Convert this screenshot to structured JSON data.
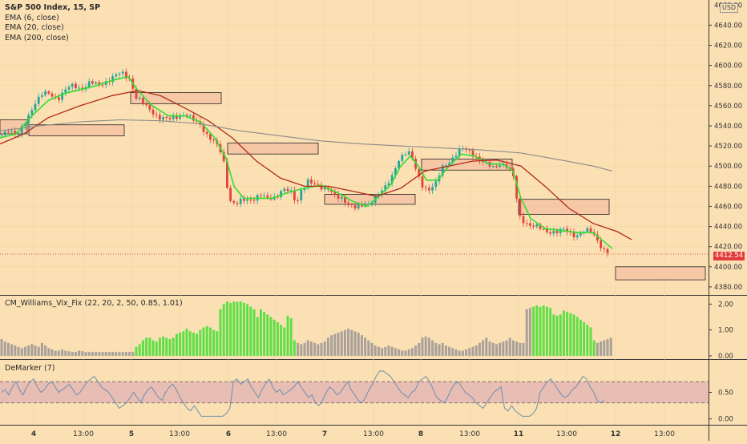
{
  "legend": {
    "symbol": "S&P 500 Index, 15, SP",
    "ema1": "EMA (6, close)",
    "ema2": "EMA (20, close)",
    "ema3": "EMA (200, close)"
  },
  "currency": "USD",
  "last_price": "4412.54",
  "indicators": {
    "wvf_title": "CM_Williams_Vix_Fix (22, 20, 2, 50, 0.85, 1.01)",
    "demarker_title": "DeMarker (7)"
  },
  "colors": {
    "background": "#fbe0b4",
    "ema_fast": "#33dd33",
    "ema_mid": "#b02a18",
    "ema_slow": "#8a8a8a",
    "candle_up": "#26a69a",
    "candle_down": "#e0443a",
    "zone_fill": "#f5c3a3",
    "wvf_high": "#5de045",
    "wvf_normal": "#a8a09a",
    "demarker_band": "#e6b9b2",
    "demarker_line": "#6c8fb0"
  },
  "chart_data": {
    "type": "candlestick",
    "x_tick_labels": [
      "4",
      "13:00",
      "5",
      "13:00",
      "6",
      "13:00",
      "7",
      "13:00",
      "8",
      "13:00",
      "11",
      "13:00",
      "12",
      "13:00"
    ],
    "price_axis": {
      "ylim": [
        4372,
        4665
      ],
      "ticks": [
        "4640.00",
        "4620.00",
        "4600.00",
        "4580.00",
        "4560.00",
        "4540.00",
        "4520.00",
        "4500.00",
        "4480.00",
        "4460.00",
        "4440.00",
        "4420.00",
        "4400.00",
        "4380.00"
      ],
      "top_tick_partial": "4660.00"
    },
    "last_price": 4412.54,
    "price_path": [
      [
        0,
        4530
      ],
      [
        10,
        4538
      ],
      [
        22,
        4528
      ],
      [
        32,
        4545
      ],
      [
        42,
        4562
      ],
      [
        52,
        4570
      ],
      [
        62,
        4572
      ],
      [
        72,
        4568
      ],
      [
        82,
        4575
      ],
      [
        92,
        4580
      ],
      [
        102,
        4578
      ],
      [
        112,
        4582
      ],
      [
        122,
        4580
      ],
      [
        132,
        4585
      ],
      [
        142,
        4588
      ],
      [
        152,
        4592
      ],
      [
        162,
        4588
      ],
      [
        170,
        4568
      ],
      [
        180,
        4560
      ],
      [
        190,
        4555
      ],
      [
        200,
        4548
      ],
      [
        210,
        4545
      ],
      [
        220,
        4550
      ],
      [
        230,
        4552
      ],
      [
        240,
        4545
      ],
      [
        250,
        4542
      ],
      [
        260,
        4530
      ],
      [
        270,
        4520
      ],
      [
        278,
        4510
      ],
      [
        286,
        4468
      ],
      [
        294,
        4462
      ],
      [
        304,
        4465
      ],
      [
        314,
        4468
      ],
      [
        324,
        4472
      ],
      [
        334,
        4466
      ],
      [
        344,
        4470
      ],
      [
        352,
        4478
      ],
      [
        362,
        4474
      ],
      [
        370,
        4462
      ],
      [
        376,
        4478
      ],
      [
        384,
        4486
      ],
      [
        392,
        4480
      ],
      [
        400,
        4478
      ],
      [
        410,
        4480
      ],
      [
        420,
        4468
      ],
      [
        430,
        4464
      ],
      [
        440,
        4462
      ],
      [
        450,
        4459
      ],
      [
        460,
        4460
      ],
      [
        470,
        4474
      ],
      [
        480,
        4478
      ],
      [
        488,
        4485
      ],
      [
        496,
        4505
      ],
      [
        504,
        4515
      ],
      [
        512,
        4512
      ],
      [
        520,
        4492
      ],
      [
        528,
        4480
      ],
      [
        536,
        4478
      ],
      [
        544,
        4482
      ],
      [
        552,
        4498
      ],
      [
        560,
        4505
      ],
      [
        568,
        4512
      ],
      [
        576,
        4516
      ],
      [
        584,
        4515
      ],
      [
        592,
        4512
      ],
      [
        600,
        4506
      ],
      [
        608,
        4500
      ],
      [
        616,
        4498
      ],
      [
        624,
        4504
      ],
      [
        632,
        4500
      ],
      [
        640,
        4490
      ],
      [
        648,
        4450
      ],
      [
        656,
        4445
      ],
      [
        664,
        4440
      ],
      [
        672,
        4438
      ],
      [
        680,
        4436
      ],
      [
        688,
        4436
      ],
      [
        696,
        4434
      ],
      [
        704,
        4436
      ],
      [
        712,
        4434
      ],
      [
        720,
        4432
      ],
      [
        728,
        4434
      ],
      [
        736,
        4435
      ],
      [
        744,
        4430
      ],
      [
        752,
        4418
      ],
      [
        760,
        4412.5
      ]
    ],
    "series": [
      {
        "name": "EMA (6, close)",
        "values": [
          [
            0,
            4528
          ],
          [
            20,
            4532
          ],
          [
            40,
            4550
          ],
          [
            60,
            4565
          ],
          [
            80,
            4572
          ],
          [
            100,
            4576
          ],
          [
            120,
            4580
          ],
          [
            140,
            4585
          ],
          [
            160,
            4589
          ],
          [
            172,
            4575
          ],
          [
            190,
            4560
          ],
          [
            210,
            4550
          ],
          [
            230,
            4550
          ],
          [
            250,
            4544
          ],
          [
            268,
            4528
          ],
          [
            282,
            4508
          ],
          [
            292,
            4480
          ],
          [
            304,
            4468
          ],
          [
            320,
            4468
          ],
          [
            340,
            4468
          ],
          [
            360,
            4474
          ],
          [
            380,
            4478
          ],
          [
            400,
            4481
          ],
          [
            420,
            4474
          ],
          [
            440,
            4465
          ],
          [
            458,
            4460
          ],
          [
            470,
            4468
          ],
          [
            488,
            4482
          ],
          [
            500,
            4500
          ],
          [
            512,
            4510
          ],
          [
            522,
            4500
          ],
          [
            532,
            4486
          ],
          [
            546,
            4486
          ],
          [
            560,
            4500
          ],
          [
            576,
            4512
          ],
          [
            592,
            4510
          ],
          [
            610,
            4502
          ],
          [
            628,
            4502
          ],
          [
            640,
            4495
          ],
          [
            650,
            4468
          ],
          [
            662,
            4448
          ],
          [
            680,
            4438
          ],
          [
            700,
            4436
          ],
          [
            720,
            4434
          ],
          [
            740,
            4434
          ],
          [
            752,
            4426
          ],
          [
            764,
            4418
          ]
        ]
      },
      {
        "name": "EMA (20, close)",
        "values": [
          [
            0,
            4522
          ],
          [
            30,
            4532
          ],
          [
            60,
            4548
          ],
          [
            100,
            4560
          ],
          [
            140,
            4570
          ],
          [
            172,
            4575
          ],
          [
            200,
            4570
          ],
          [
            230,
            4558
          ],
          [
            260,
            4545
          ],
          [
            290,
            4528
          ],
          [
            320,
            4505
          ],
          [
            350,
            4488
          ],
          [
            380,
            4480
          ],
          [
            410,
            4480
          ],
          [
            440,
            4475
          ],
          [
            470,
            4470
          ],
          [
            500,
            4478
          ],
          [
            530,
            4495
          ],
          [
            560,
            4500
          ],
          [
            590,
            4505
          ],
          [
            620,
            4506
          ],
          [
            650,
            4500
          ],
          [
            680,
            4480
          ],
          [
            710,
            4458
          ],
          [
            740,
            4443
          ],
          [
            770,
            4435
          ],
          [
            788,
            4427
          ]
        ]
      },
      {
        "name": "EMA (200, close)",
        "values": [
          [
            0,
            4535
          ],
          [
            50,
            4540
          ],
          [
            100,
            4544
          ],
          [
            150,
            4546
          ],
          [
            200,
            4545
          ],
          [
            250,
            4542
          ],
          [
            300,
            4535
          ],
          [
            350,
            4530
          ],
          [
            400,
            4525
          ],
          [
            450,
            4522
          ],
          [
            500,
            4520
          ],
          [
            550,
            4518
          ],
          [
            600,
            4516
          ],
          [
            650,
            4513
          ],
          [
            700,
            4506
          ],
          [
            740,
            4500
          ],
          [
            764,
            4495
          ]
        ]
      }
    ],
    "zones": [
      [
        0,
        34,
        4532,
        4546
      ],
      [
        36,
        155,
        4530,
        4541
      ],
      [
        163,
        276,
        4562,
        4573
      ],
      [
        284,
        397,
        4512,
        4523
      ],
      [
        405,
        518,
        4462,
        4472
      ],
      [
        526,
        639,
        4496,
        4507
      ],
      [
        647,
        760,
        4452,
        4467
      ],
      [
        768,
        880,
        4387,
        4400
      ]
    ],
    "wvf": {
      "title": "CM_Williams_Vix_Fix (22, 20, 2, 50, 0.85, 1.01)",
      "ylim": [
        0,
        2.2
      ],
      "ticks": [
        "2.00",
        "1.00",
        "0.00"
      ],
      "values": [
        0.65,
        0.55,
        0.5,
        0.45,
        0.4,
        0.35,
        0.3,
        0.35,
        0.4,
        0.45,
        0.4,
        0.35,
        0.5,
        0.4,
        0.3,
        0.25,
        0.2,
        0.2,
        0.25,
        0.2,
        0.18,
        0.15,
        0.15,
        0.2,
        0.18,
        0.15,
        0.15,
        0.15,
        0.15,
        0.15,
        0.15,
        0.15,
        0.15,
        0.15,
        0.15,
        0.15,
        0.15,
        0.15,
        0.15,
        0.15,
        0.35,
        0.45,
        0.6,
        0.7,
        0.7,
        0.6,
        0.55,
        0.7,
        0.75,
        0.7,
        0.65,
        0.7,
        0.85,
        0.9,
        0.95,
        1.05,
        0.95,
        0.9,
        0.85,
        1.0,
        1.1,
        1.15,
        1.1,
        1.0,
        0.95,
        1.8,
        2.0,
        2.1,
        2.05,
        2.1,
        2.08,
        2.1,
        2.05,
        2.0,
        1.9,
        1.8,
        1.5,
        1.8,
        1.7,
        1.6,
        1.5,
        1.4,
        1.3,
        1.2,
        1.1,
        1.55,
        1.45,
        0.6,
        0.5,
        0.45,
        0.5,
        0.6,
        0.55,
        0.5,
        0.45,
        0.5,
        0.55,
        0.7,
        0.8,
        0.85,
        0.9,
        0.95,
        1.0,
        1.05,
        1.0,
        0.95,
        0.9,
        0.8,
        0.7,
        0.6,
        0.5,
        0.4,
        0.35,
        0.3,
        0.35,
        0.4,
        0.35,
        0.3,
        0.25,
        0.2,
        0.2,
        0.25,
        0.3,
        0.4,
        0.5,
        0.7,
        0.75,
        0.7,
        0.6,
        0.5,
        0.45,
        0.5,
        0.4,
        0.35,
        0.3,
        0.25,
        0.2,
        0.2,
        0.25,
        0.3,
        0.35,
        0.4,
        0.5,
        0.6,
        0.7,
        0.55,
        0.5,
        0.45,
        0.5,
        0.55,
        0.6,
        0.7,
        0.6,
        0.55,
        0.5,
        0.5,
        1.8,
        1.85,
        1.9,
        1.95,
        1.9,
        1.95,
        1.9,
        1.85,
        1.6,
        1.55,
        1.6,
        1.75,
        1.7,
        1.65,
        1.6,
        1.5,
        1.4,
        1.3,
        1.2,
        1.1,
        0.6,
        0.5,
        0.55,
        0.6,
        0.65,
        0.7,
        0.5
      ],
      "green_ranges": [
        [
          40,
          64
        ],
        [
          65,
          87
        ],
        [
          158,
          176
        ]
      ]
    },
    "demarker": {
      "title": "DeMarker (7)",
      "ylim": [
        -0.05,
        1.05
      ],
      "ticks": [
        "0.50",
        "0.00"
      ],
      "band": [
        0.3,
        0.7
      ],
      "values": [
        0.5,
        0.55,
        0.45,
        0.6,
        0.7,
        0.55,
        0.45,
        0.6,
        0.7,
        0.75,
        0.6,
        0.5,
        0.55,
        0.65,
        0.7,
        0.6,
        0.5,
        0.55,
        0.6,
        0.65,
        0.55,
        0.45,
        0.5,
        0.6,
        0.7,
        0.75,
        0.8,
        0.7,
        0.6,
        0.55,
        0.5,
        0.4,
        0.3,
        0.2,
        0.25,
        0.3,
        0.4,
        0.5,
        0.4,
        0.3,
        0.45,
        0.55,
        0.6,
        0.5,
        0.4,
        0.35,
        0.5,
        0.6,
        0.65,
        0.55,
        0.4,
        0.3,
        0.2,
        0.15,
        0.25,
        0.15,
        0.05,
        0.05,
        0.05,
        0.05,
        0.05,
        0.05,
        0.05,
        0.1,
        0.2,
        0.7,
        0.75,
        0.65,
        0.7,
        0.75,
        0.6,
        0.5,
        0.4,
        0.55,
        0.65,
        0.75,
        0.6,
        0.5,
        0.55,
        0.45,
        0.5,
        0.55,
        0.6,
        0.7,
        0.6,
        0.5,
        0.4,
        0.45,
        0.3,
        0.25,
        0.35,
        0.5,
        0.6,
        0.55,
        0.45,
        0.5,
        0.6,
        0.7,
        0.55,
        0.45,
        0.35,
        0.3,
        0.4,
        0.55,
        0.65,
        0.8,
        0.9,
        0.9,
        0.85,
        0.8,
        0.7,
        0.6,
        0.5,
        0.45,
        0.4,
        0.5,
        0.55,
        0.7,
        0.75,
        0.8,
        0.7,
        0.55,
        0.4,
        0.35,
        0.3,
        0.4,
        0.55,
        0.65,
        0.7,
        0.6,
        0.5,
        0.45,
        0.4,
        0.3,
        0.25,
        0.2,
        0.3,
        0.4,
        0.5,
        0.55,
        0.6,
        0.2,
        0.15,
        0.25,
        0.15,
        0.1,
        0.05,
        0.05,
        0.05,
        0.1,
        0.2,
        0.5,
        0.6,
        0.7,
        0.75,
        0.65,
        0.55,
        0.45,
        0.4,
        0.45,
        0.55,
        0.6,
        0.7,
        0.8,
        0.75,
        0.6,
        0.5,
        0.35,
        0.3,
        0.35
      ]
    }
  }
}
